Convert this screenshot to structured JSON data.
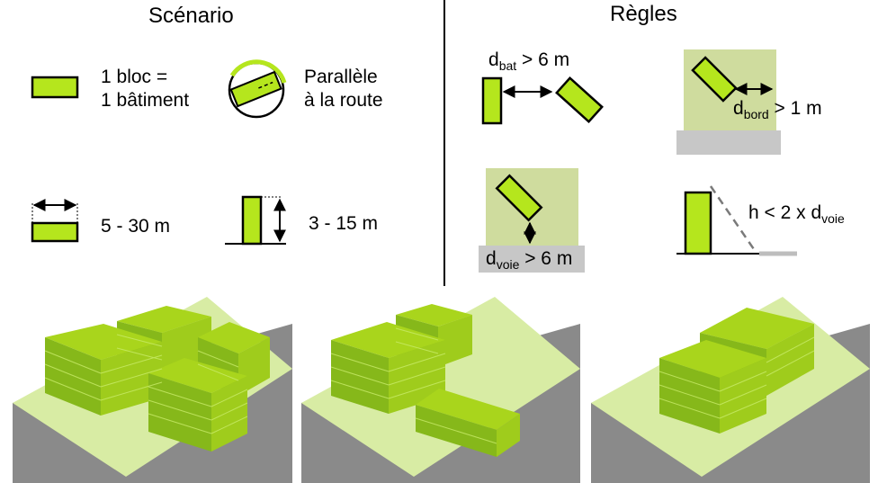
{
  "scenario": {
    "title": "Scénario",
    "block_line1": "1 bloc =",
    "block_line2": "1 bâtiment",
    "parallel_line1": "Parallèle",
    "parallel_line2": "à la route",
    "width_range": "5 - 30 m",
    "height_range": "3 - 15 m"
  },
  "rules": {
    "title": "Règles",
    "dist_bat": {
      "prefix": "d",
      "sub": "bat",
      "suffix": " > 6 m"
    },
    "dist_bord": {
      "prefix": "d",
      "sub": "bord",
      "suffix": " > 1 m"
    },
    "dist_voie": {
      "prefix": "d",
      "sub": "voie",
      "suffix": " > 6 m"
    },
    "height_rule": {
      "prefix": "h < 2 x d",
      "sub": "voie",
      "suffix": ""
    }
  },
  "colors": {
    "block_fill": "#b5e61d",
    "block_stroke": "#000000",
    "parcel": "#cfdc9e",
    "road": "#c7c7c7",
    "render_ground": "#8a8a8a",
    "render_parcel": "#d8eca4",
    "render_top": "#a9d51c",
    "render_side": "#86b81a"
  }
}
